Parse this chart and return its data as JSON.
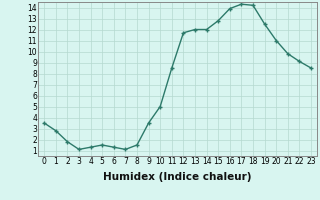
{
  "x": [
    0,
    1,
    2,
    3,
    4,
    5,
    6,
    7,
    8,
    9,
    10,
    11,
    12,
    13,
    14,
    15,
    16,
    17,
    18,
    19,
    20,
    21,
    22,
    23
  ],
  "y": [
    3.5,
    2.8,
    1.8,
    1.1,
    1.3,
    1.5,
    1.3,
    1.1,
    1.5,
    3.5,
    5.0,
    8.5,
    11.7,
    12.0,
    12.0,
    12.8,
    13.9,
    14.3,
    14.2,
    12.5,
    11.0,
    9.8,
    9.1,
    8.5
  ],
  "line_color": "#2d7a6a",
  "marker": "+",
  "marker_color": "#2d7a6a",
  "bg_color": "#d8f5f0",
  "grid_color": "#b5d9d0",
  "xlabel": "Humidex (Indice chaleur)",
  "xlim": [
    -0.5,
    23.5
  ],
  "ylim": [
    0.5,
    14.5
  ],
  "yticks": [
    1,
    2,
    3,
    4,
    5,
    6,
    7,
    8,
    9,
    10,
    11,
    12,
    13,
    14
  ],
  "xticks": [
    0,
    1,
    2,
    3,
    4,
    5,
    6,
    7,
    8,
    9,
    10,
    11,
    12,
    13,
    14,
    15,
    16,
    17,
    18,
    19,
    20,
    21,
    22,
    23
  ],
  "tick_label_fontsize": 5.5,
  "xlabel_fontsize": 7.5,
  "marker_size": 3.5,
  "line_width": 1.0
}
